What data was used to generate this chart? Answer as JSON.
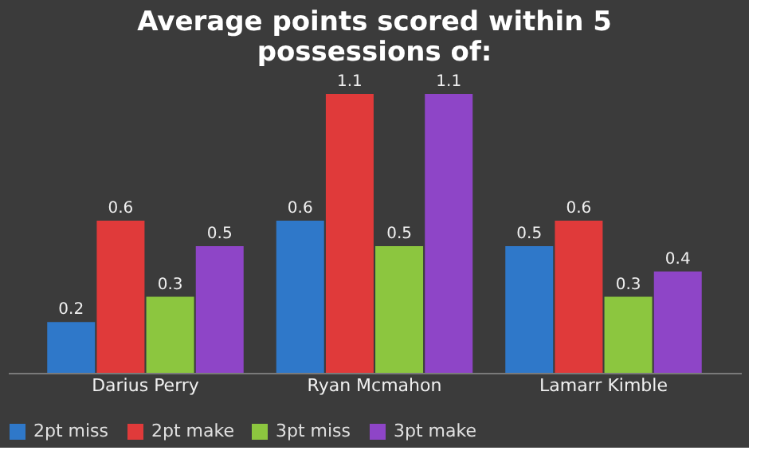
{
  "chart_data": {
    "type": "bar",
    "title": "Average points scored within 5 possessions of:",
    "categories": [
      "Darius Perry",
      "Ryan Mcmahon",
      "Lamarr Kimble"
    ],
    "series": [
      {
        "name": "2pt miss",
        "color": "#2f78c9",
        "values": [
          0.2,
          0.6,
          0.5
        ]
      },
      {
        "name": "2pt make",
        "color": "#e03a3a",
        "values": [
          0.6,
          1.1,
          0.6
        ]
      },
      {
        "name": "3pt miss",
        "color": "#8cc63f",
        "values": [
          0.3,
          0.5,
          0.3
        ]
      },
      {
        "name": "3pt make",
        "color": "#8e45c7",
        "values": [
          0.5,
          1.1,
          0.4
        ]
      }
    ],
    "data_labels": true,
    "grid": false,
    "legend": "bottom"
  }
}
